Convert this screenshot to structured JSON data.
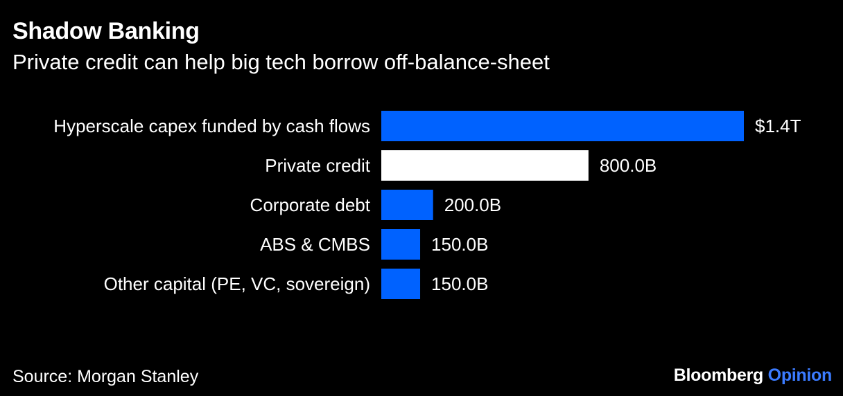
{
  "header": {
    "title": "Shadow Banking",
    "subtitle": "Private credit can help big tech borrow off-balance-sheet"
  },
  "footer": {
    "source": "Source: Morgan Stanley",
    "brand_primary": "Bloomberg",
    "brand_secondary": "Opinion"
  },
  "colors": {
    "background": "#000000",
    "bar_blue": "#0062ff",
    "bar_highlight": "#ffffff",
    "text": "#ffffff",
    "brand_accent": "#3b7bff"
  },
  "chart_data": {
    "type": "bar",
    "orientation": "horizontal",
    "title": "Shadow Banking",
    "subtitle": "Private credit can help big tech borrow off-balance-sheet",
    "categories": [
      "Hyperscale capex funded by cash flows",
      "Private credit",
      "Corporate debt",
      "ABS & CMBS",
      "Other capital (PE, VC, sovereign)"
    ],
    "values": [
      1400,
      800,
      200,
      150,
      150
    ],
    "value_unit": "billions USD",
    "data_labels": [
      "$1.4T",
      "800.0B",
      "200.0B",
      "150.0B",
      "150.0B"
    ],
    "highlight_index": 1,
    "xlim": [
      0,
      1400
    ],
    "grid": false,
    "legend": "none",
    "xlabel": "",
    "ylabel": ""
  }
}
